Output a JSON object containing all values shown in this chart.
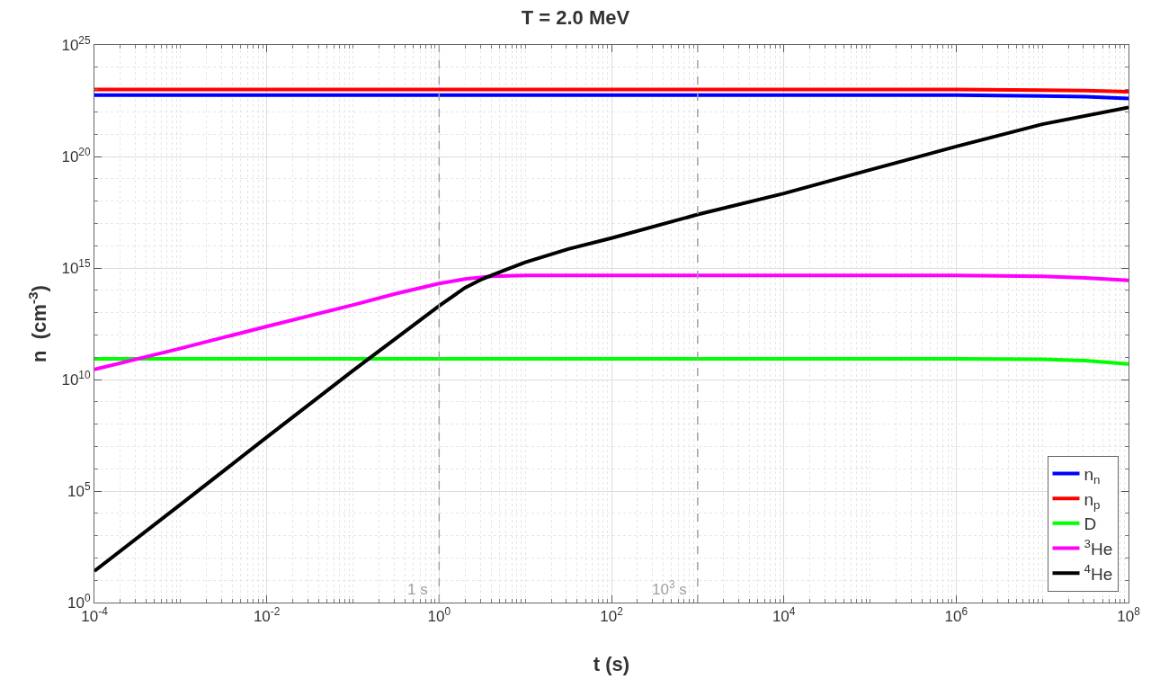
{
  "chart_data": {
    "type": "line",
    "title": "T = 2.0 MeV",
    "xlabel": "t (s)",
    "ylabel": "n  (cm$^{-3}$)",
    "log": "xy",
    "grid": true,
    "legend": "bottom right",
    "line_style": "solid",
    "marker": "none",
    "xlim": [
      0.0001,
      100000000.0
    ],
    "ylim": [
      1,
      1e+25
    ],
    "xticks": [
      {
        "value": 0.0001,
        "label": "10$^{-4}$"
      },
      {
        "value": 0.01,
        "label": "10$^{-2}$"
      },
      {
        "value": 1,
        "label": "10$^{0}$"
      },
      {
        "value": 100,
        "label": "10$^{2}$"
      },
      {
        "value": 10000.0,
        "label": "10$^{4}$"
      },
      {
        "value": 1000000.0,
        "label": "10$^{6}$"
      },
      {
        "value": 100000000.0,
        "label": "10$^{8}$"
      }
    ],
    "yticks": [
      {
        "value": 1,
        "label": "10$^{0}$"
      },
      {
        "value": 100000.0,
        "label": "10$^{5}$"
      },
      {
        "value": 10000000000.0,
        "label": "10$^{10}$"
      },
      {
        "value": 1000000000000000.0,
        "label": "10$^{15}$"
      },
      {
        "value": 1e+20,
        "label": "10$^{20}$"
      },
      {
        "value": 1e+25,
        "label": "10$^{25}$"
      }
    ],
    "ref_lines": [
      {
        "axis": "x",
        "value": 1,
        "label": "1 s",
        "color": "#a0a0a0",
        "line_style": "dashed"
      },
      {
        "axis": "x",
        "value": 1000,
        "label": "10$^{3}$ s",
        "color": "#a0a0a0",
        "line_style": "dashed"
      }
    ],
    "series": [
      {
        "name": "n$_{n}$",
        "color": "#0000ff",
        "x": [
          0.0001,
          1,
          1000000.0,
          10000000.0,
          31600000.0,
          100000000.0
        ],
        "values": [
          5.6e+22,
          5.6e+22,
          5.6e+22,
          5.2e+22,
          4.8e+22,
          4e+22
        ]
      },
      {
        "name": "n$_{p}$",
        "color": "#ff0000",
        "x": [
          0.0001,
          1,
          1000000.0,
          10000000.0,
          31600000.0,
          100000000.0
        ],
        "values": [
          1e+23,
          1e+23,
          1e+23,
          9.5e+22,
          9e+22,
          8e+22
        ]
      },
      {
        "name": "D",
        "color": "#00ff00",
        "x": [
          0.0001,
          1,
          1000000.0,
          10000000.0,
          31600000.0,
          100000000.0
        ],
        "values": [
          85000000000.0,
          85000000000.0,
          85000000000.0,
          80000000000.0,
          70000000000.0,
          50000000000.0
        ]
      },
      {
        "name": "$^{3}$He",
        "color": "#ff00ff",
        "x": [
          0.0001,
          0.001,
          0.01,
          0.1,
          0.316,
          1,
          2,
          4,
          10,
          1000000.0,
          10000000.0,
          31600000.0,
          100000000.0
        ],
        "values": [
          28000000000.0,
          250000000000.0,
          2400000000000.0,
          22000000000000.0,
          71000000000000.0,
          200000000000000.0,
          320000000000000.0,
          420000000000000.0,
          460000000000000.0,
          460000000000000.0,
          420000000000000.0,
          360000000000000.0,
          280000000000000.0
        ]
      },
      {
        "name": "$^{4}$He",
        "color": "#000000",
        "x": [
          0.0001,
          0.001,
          0.01,
          0.1,
          1,
          2,
          3.16,
          5.6,
          10,
          31.6,
          100,
          1000,
          10000.0,
          100000.0,
          1000000.0,
          10000000.0,
          100000000.0
        ],
        "values": [
          26,
          25000.0,
          26000000.0,
          25000000000.0,
          20000000000000.0,
          130000000000000.0,
          320000000000000.0,
          760000000000000.0,
          1800000000000000.0,
          7100000000000000.0,
          2.2e+16,
          2.5e+17,
          2.2e+18,
          2.5e+19,
          2.8e+20,
          2.8e+21,
          1.6e+22
        ]
      }
    ]
  }
}
